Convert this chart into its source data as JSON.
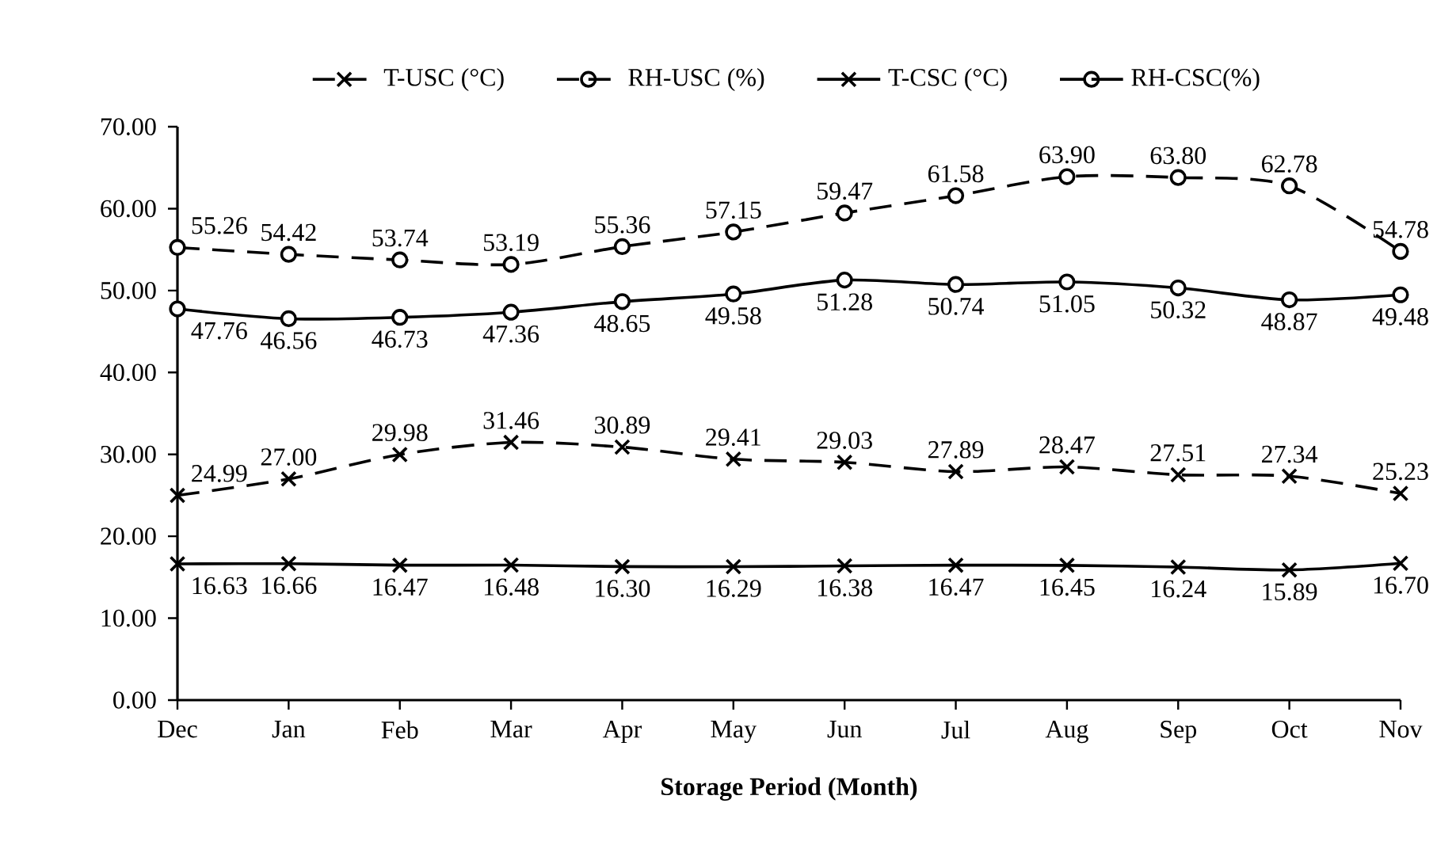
{
  "chart_data": {
    "type": "line",
    "xlabel": "Storage Period (Month)",
    "categories": [
      "Dec",
      "Jan",
      "Feb",
      "Mar",
      "Apr",
      "May",
      "Jun",
      "Jul",
      "Aug",
      "Sep",
      "Oct",
      "Nov"
    ],
    "ylim": [
      0,
      70
    ],
    "yticks": [
      {
        "value": 0,
        "label": "0.00"
      },
      {
        "value": 10,
        "label": "10.00"
      },
      {
        "value": 20,
        "label": "20.00"
      },
      {
        "value": 30,
        "label": "30.00"
      },
      {
        "value": 40,
        "label": "40.00"
      },
      {
        "value": 50,
        "label": "50.00"
      },
      {
        "value": 60,
        "label": "60.00"
      },
      {
        "value": 70,
        "label": "70.00"
      }
    ],
    "legend": "top",
    "grid": false,
    "series": [
      {
        "name": "T-USC (°C)",
        "color": "#000000",
        "line_style": "dashed",
        "marker": "cross",
        "values": [
          24.99,
          27.0,
          29.98,
          31.46,
          30.89,
          29.41,
          29.03,
          27.89,
          28.47,
          27.51,
          27.34,
          25.23
        ],
        "value_labels": [
          "24.99",
          "27.00",
          "29.98",
          "31.46",
          "30.89",
          "29.41",
          "29.03",
          "27.89",
          "28.47",
          "27.51",
          "27.34",
          "25.23"
        ]
      },
      {
        "name": "RH-USC (%)",
        "color": "#000000",
        "line_style": "dashed",
        "marker": "circle",
        "values": [
          55.26,
          54.42,
          53.74,
          53.19,
          55.36,
          57.15,
          59.47,
          61.58,
          63.9,
          63.8,
          62.78,
          54.78
        ],
        "value_labels": [
          "55.26",
          "54.42",
          "53.74",
          "53.19",
          "55.36",
          "57.15",
          "59.47",
          "61.58",
          "63.90",
          "63.80",
          "62.78",
          "54.78"
        ]
      },
      {
        "name": "T-CSC (°C)",
        "color": "#000000",
        "line_style": "solid",
        "marker": "cross",
        "values": [
          16.63,
          16.66,
          16.47,
          16.48,
          16.3,
          16.29,
          16.38,
          16.47,
          16.45,
          16.24,
          15.89,
          16.7
        ],
        "value_labels": [
          "16.63",
          "16.66",
          "16.47",
          "16.48",
          "16.30",
          "16.29",
          "16.38",
          "16.47",
          "16.45",
          "16.24",
          "15.89",
          "16.70"
        ]
      },
      {
        "name": "RH-CSC(%)",
        "color": "#000000",
        "line_style": "solid",
        "marker": "circle",
        "values": [
          47.76,
          46.56,
          46.73,
          47.36,
          48.65,
          49.58,
          51.28,
          50.74,
          51.05,
          50.32,
          48.87,
          49.48
        ],
        "value_labels": [
          "47.76",
          "46.56",
          "46.73",
          "47.36",
          "48.65",
          "49.58",
          "51.28",
          "50.74",
          "51.05",
          "50.32",
          "48.87",
          "49.48"
        ]
      }
    ]
  }
}
